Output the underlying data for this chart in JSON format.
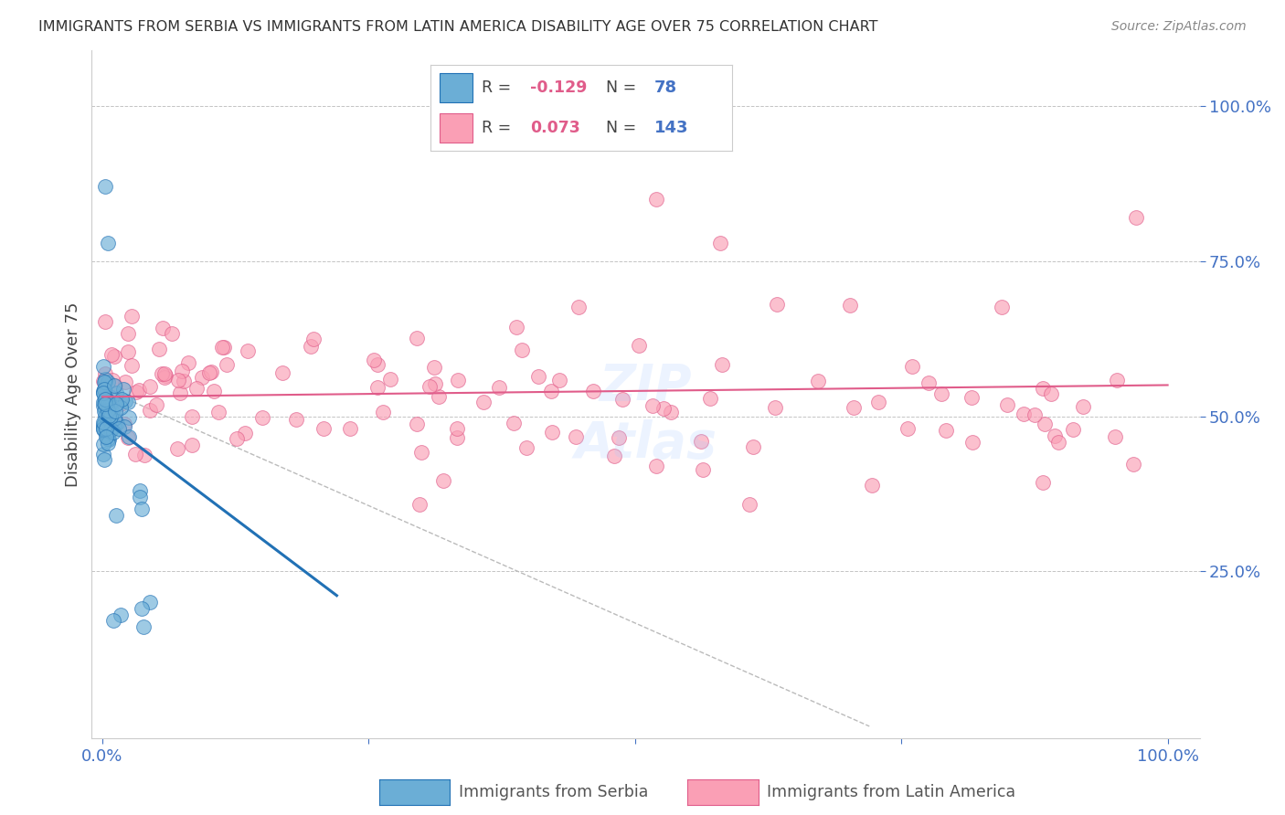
{
  "title": "IMMIGRANTS FROM SERBIA VS IMMIGRANTS FROM LATIN AMERICA DISABILITY AGE OVER 75 CORRELATION CHART",
  "source": "Source: ZipAtlas.com",
  "ylabel": "Disability Age Over 75",
  "serbia_R": -0.129,
  "serbia_N": 78,
  "latin_R": 0.073,
  "latin_N": 143,
  "serbia_color": "#6baed6",
  "latin_color": "#fa9fb5",
  "serbia_line_color": "#2171b5",
  "latin_line_color": "#e05c8a",
  "background_color": "#ffffff",
  "grid_color": "#aaaaaa",
  "title_color": "#333333",
  "axis_color": "#4472c4"
}
